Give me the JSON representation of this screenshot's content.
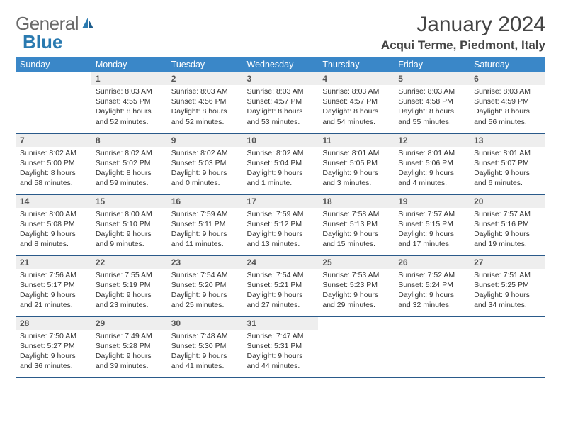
{
  "logo": {
    "general": "General",
    "blue": "Blue"
  },
  "title": "January 2024",
  "location": "Acqui Terme, Piedmont, Italy",
  "colors": {
    "header_bg": "#3a87c8",
    "header_text": "#ffffff",
    "daynum_bg": "#eeeeee",
    "row_border": "#2a5a8a",
    "logo_blue": "#2a7ab0"
  },
  "weekdays": [
    "Sunday",
    "Monday",
    "Tuesday",
    "Wednesday",
    "Thursday",
    "Friday",
    "Saturday"
  ],
  "weeks": [
    [
      null,
      {
        "n": "1",
        "sr": "Sunrise: 8:03 AM",
        "ss": "Sunset: 4:55 PM",
        "d1": "Daylight: 8 hours",
        "d2": "and 52 minutes."
      },
      {
        "n": "2",
        "sr": "Sunrise: 8:03 AM",
        "ss": "Sunset: 4:56 PM",
        "d1": "Daylight: 8 hours",
        "d2": "and 52 minutes."
      },
      {
        "n": "3",
        "sr": "Sunrise: 8:03 AM",
        "ss": "Sunset: 4:57 PM",
        "d1": "Daylight: 8 hours",
        "d2": "and 53 minutes."
      },
      {
        "n": "4",
        "sr": "Sunrise: 8:03 AM",
        "ss": "Sunset: 4:57 PM",
        "d1": "Daylight: 8 hours",
        "d2": "and 54 minutes."
      },
      {
        "n": "5",
        "sr": "Sunrise: 8:03 AM",
        "ss": "Sunset: 4:58 PM",
        "d1": "Daylight: 8 hours",
        "d2": "and 55 minutes."
      },
      {
        "n": "6",
        "sr": "Sunrise: 8:03 AM",
        "ss": "Sunset: 4:59 PM",
        "d1": "Daylight: 8 hours",
        "d2": "and 56 minutes."
      }
    ],
    [
      {
        "n": "7",
        "sr": "Sunrise: 8:02 AM",
        "ss": "Sunset: 5:00 PM",
        "d1": "Daylight: 8 hours",
        "d2": "and 58 minutes."
      },
      {
        "n": "8",
        "sr": "Sunrise: 8:02 AM",
        "ss": "Sunset: 5:02 PM",
        "d1": "Daylight: 8 hours",
        "d2": "and 59 minutes."
      },
      {
        "n": "9",
        "sr": "Sunrise: 8:02 AM",
        "ss": "Sunset: 5:03 PM",
        "d1": "Daylight: 9 hours",
        "d2": "and 0 minutes."
      },
      {
        "n": "10",
        "sr": "Sunrise: 8:02 AM",
        "ss": "Sunset: 5:04 PM",
        "d1": "Daylight: 9 hours",
        "d2": "and 1 minute."
      },
      {
        "n": "11",
        "sr": "Sunrise: 8:01 AM",
        "ss": "Sunset: 5:05 PM",
        "d1": "Daylight: 9 hours",
        "d2": "and 3 minutes."
      },
      {
        "n": "12",
        "sr": "Sunrise: 8:01 AM",
        "ss": "Sunset: 5:06 PM",
        "d1": "Daylight: 9 hours",
        "d2": "and 4 minutes."
      },
      {
        "n": "13",
        "sr": "Sunrise: 8:01 AM",
        "ss": "Sunset: 5:07 PM",
        "d1": "Daylight: 9 hours",
        "d2": "and 6 minutes."
      }
    ],
    [
      {
        "n": "14",
        "sr": "Sunrise: 8:00 AM",
        "ss": "Sunset: 5:08 PM",
        "d1": "Daylight: 9 hours",
        "d2": "and 8 minutes."
      },
      {
        "n": "15",
        "sr": "Sunrise: 8:00 AM",
        "ss": "Sunset: 5:10 PM",
        "d1": "Daylight: 9 hours",
        "d2": "and 9 minutes."
      },
      {
        "n": "16",
        "sr": "Sunrise: 7:59 AM",
        "ss": "Sunset: 5:11 PM",
        "d1": "Daylight: 9 hours",
        "d2": "and 11 minutes."
      },
      {
        "n": "17",
        "sr": "Sunrise: 7:59 AM",
        "ss": "Sunset: 5:12 PM",
        "d1": "Daylight: 9 hours",
        "d2": "and 13 minutes."
      },
      {
        "n": "18",
        "sr": "Sunrise: 7:58 AM",
        "ss": "Sunset: 5:13 PM",
        "d1": "Daylight: 9 hours",
        "d2": "and 15 minutes."
      },
      {
        "n": "19",
        "sr": "Sunrise: 7:57 AM",
        "ss": "Sunset: 5:15 PM",
        "d1": "Daylight: 9 hours",
        "d2": "and 17 minutes."
      },
      {
        "n": "20",
        "sr": "Sunrise: 7:57 AM",
        "ss": "Sunset: 5:16 PM",
        "d1": "Daylight: 9 hours",
        "d2": "and 19 minutes."
      }
    ],
    [
      {
        "n": "21",
        "sr": "Sunrise: 7:56 AM",
        "ss": "Sunset: 5:17 PM",
        "d1": "Daylight: 9 hours",
        "d2": "and 21 minutes."
      },
      {
        "n": "22",
        "sr": "Sunrise: 7:55 AM",
        "ss": "Sunset: 5:19 PM",
        "d1": "Daylight: 9 hours",
        "d2": "and 23 minutes."
      },
      {
        "n": "23",
        "sr": "Sunrise: 7:54 AM",
        "ss": "Sunset: 5:20 PM",
        "d1": "Daylight: 9 hours",
        "d2": "and 25 minutes."
      },
      {
        "n": "24",
        "sr": "Sunrise: 7:54 AM",
        "ss": "Sunset: 5:21 PM",
        "d1": "Daylight: 9 hours",
        "d2": "and 27 minutes."
      },
      {
        "n": "25",
        "sr": "Sunrise: 7:53 AM",
        "ss": "Sunset: 5:23 PM",
        "d1": "Daylight: 9 hours",
        "d2": "and 29 minutes."
      },
      {
        "n": "26",
        "sr": "Sunrise: 7:52 AM",
        "ss": "Sunset: 5:24 PM",
        "d1": "Daylight: 9 hours",
        "d2": "and 32 minutes."
      },
      {
        "n": "27",
        "sr": "Sunrise: 7:51 AM",
        "ss": "Sunset: 5:25 PM",
        "d1": "Daylight: 9 hours",
        "d2": "and 34 minutes."
      }
    ],
    [
      {
        "n": "28",
        "sr": "Sunrise: 7:50 AM",
        "ss": "Sunset: 5:27 PM",
        "d1": "Daylight: 9 hours",
        "d2": "and 36 minutes."
      },
      {
        "n": "29",
        "sr": "Sunrise: 7:49 AM",
        "ss": "Sunset: 5:28 PM",
        "d1": "Daylight: 9 hours",
        "d2": "and 39 minutes."
      },
      {
        "n": "30",
        "sr": "Sunrise: 7:48 AM",
        "ss": "Sunset: 5:30 PM",
        "d1": "Daylight: 9 hours",
        "d2": "and 41 minutes."
      },
      {
        "n": "31",
        "sr": "Sunrise: 7:47 AM",
        "ss": "Sunset: 5:31 PM",
        "d1": "Daylight: 9 hours",
        "d2": "and 44 minutes."
      },
      null,
      null,
      null
    ]
  ]
}
